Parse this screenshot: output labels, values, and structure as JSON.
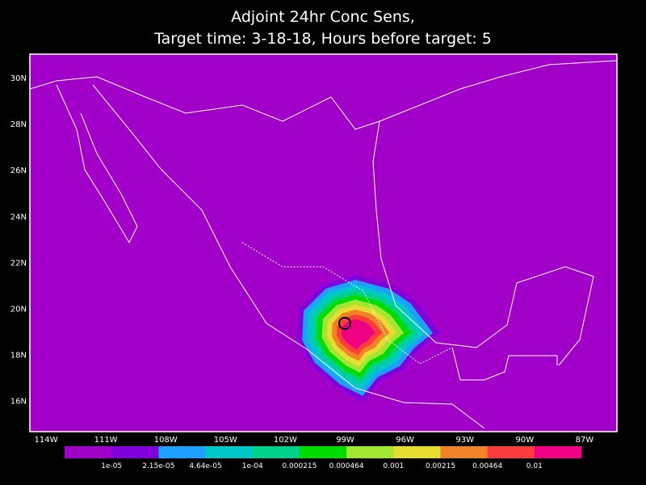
{
  "title": [
    "Adjoint 24hr Conc Sens,",
    "Target time: 3-18-18, Hours before target: 5"
  ],
  "map": {
    "lat_labels": [
      "30N",
      "28N",
      "26N",
      "24N",
      "22N",
      "20N",
      "18N",
      "16N"
    ],
    "lon_labels": [
      "114W",
      "111W",
      "108W",
      "105W",
      "102W",
      "99W",
      "96W",
      "93W",
      "90W",
      "87W"
    ]
  },
  "colorbar": {
    "colors": [
      "#a000c8",
      "#8200dc",
      "#1ea0ff",
      "#00c8c8",
      "#00d28c",
      "#00dc00",
      "#a0e632",
      "#e6dc32",
      "#f08228",
      "#fa3c3c",
      "#f00082"
    ],
    "labels": [
      "1e-05",
      "2.15e-05",
      "4.64e-05",
      "1e-04",
      "0.000215",
      "0.000464",
      "0.001",
      "0.00215",
      "0.00464",
      "0.01"
    ]
  }
}
